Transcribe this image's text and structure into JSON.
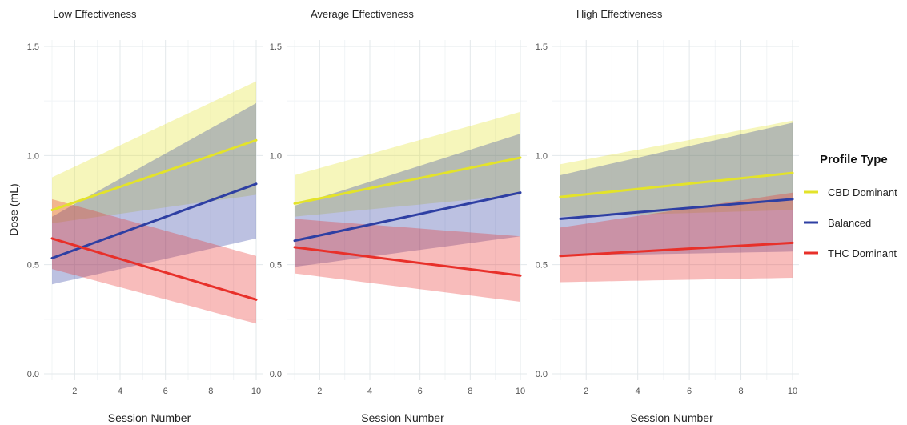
{
  "chart_data": {
    "type": "line",
    "ylabel": "Dose (mL)",
    "xlabel": "Session Number",
    "xlim": [
      1,
      10
    ],
    "ylim": [
      0,
      1.5
    ],
    "x_ticks": [
      2,
      4,
      6,
      8,
      10
    ],
    "y_ticks": [
      0.0,
      0.5,
      1.0,
      1.5
    ],
    "y_tick_labels": [
      "0.0",
      "0.5",
      "1.0",
      "1.5"
    ],
    "grid": true,
    "legend": {
      "title": "Profile Type",
      "placement": "right",
      "entries": [
        "CBD Dominant",
        "Balanced",
        "THC Dominant"
      ]
    },
    "series_colors": {
      "CBD Dominant": "#e3e32a",
      "Balanced": "#2e3fa3",
      "THC Dominant": "#e8302a"
    },
    "panels": [
      {
        "title": "Low Effectiveness",
        "series": [
          {
            "name": "CBD Dominant",
            "x": [
              1,
              10
            ],
            "y": [
              0.75,
              1.07
            ],
            "lower": [
              0.69,
              0.82
            ],
            "upper": [
              0.9,
              1.34
            ]
          },
          {
            "name": "Balanced",
            "x": [
              1,
              10
            ],
            "y": [
              0.53,
              0.87
            ],
            "lower": [
              0.41,
              0.62
            ],
            "upper": [
              0.72,
              1.24
            ]
          },
          {
            "name": "THC Dominant",
            "x": [
              1,
              10
            ],
            "y": [
              0.62,
              0.34
            ],
            "lower": [
              0.48,
              0.23
            ],
            "upper": [
              0.8,
              0.54
            ]
          }
        ]
      },
      {
        "title": "Average Effectiveness",
        "series": [
          {
            "name": "CBD Dominant",
            "x": [
              1,
              10
            ],
            "y": [
              0.78,
              0.99
            ],
            "lower": [
              0.72,
              0.82
            ],
            "upper": [
              0.91,
              1.2
            ]
          },
          {
            "name": "Balanced",
            "x": [
              1,
              10
            ],
            "y": [
              0.61,
              0.83
            ],
            "lower": [
              0.49,
              0.63
            ],
            "upper": [
              0.77,
              1.1
            ]
          },
          {
            "name": "THC Dominant",
            "x": [
              1,
              10
            ],
            "y": [
              0.58,
              0.45
            ],
            "lower": [
              0.46,
              0.33
            ],
            "upper": [
              0.71,
              0.63
            ]
          }
        ]
      },
      {
        "title": "High Effectiveness",
        "series": [
          {
            "name": "CBD Dominant",
            "x": [
              1,
              10
            ],
            "y": [
              0.81,
              0.92
            ],
            "lower": [
              0.72,
              0.75
            ],
            "upper": [
              0.96,
              1.16
            ]
          },
          {
            "name": "Balanced",
            "x": [
              1,
              10
            ],
            "y": [
              0.71,
              0.8
            ],
            "lower": [
              0.54,
              0.56
            ],
            "upper": [
              0.91,
              1.15
            ]
          },
          {
            "name": "THC Dominant",
            "x": [
              1,
              10
            ],
            "y": [
              0.54,
              0.6
            ],
            "lower": [
              0.42,
              0.44
            ],
            "upper": [
              0.67,
              0.83
            ]
          }
        ]
      }
    ]
  }
}
